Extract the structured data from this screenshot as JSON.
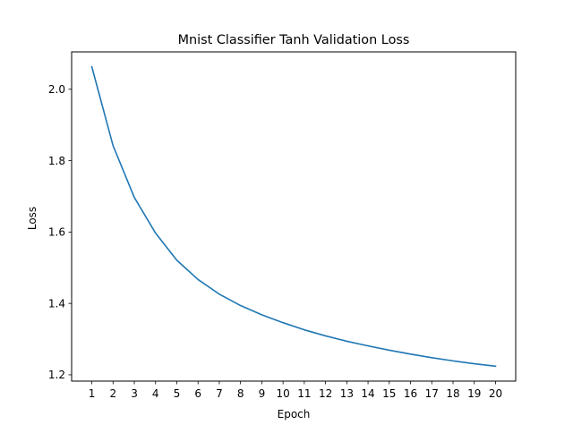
{
  "chart_data": {
    "type": "line",
    "title": "Mnist Classifier Tanh Validation Loss",
    "xlabel": "Epoch",
    "ylabel": "Loss",
    "x": [
      1,
      2,
      3,
      4,
      5,
      6,
      7,
      8,
      9,
      10,
      11,
      12,
      13,
      14,
      15,
      16,
      17,
      18,
      19,
      20
    ],
    "series": [
      {
        "values": [
          2.063,
          1.842,
          1.697,
          1.597,
          1.521,
          1.467,
          1.426,
          1.394,
          1.368,
          1.346,
          1.326,
          1.309,
          1.294,
          1.281,
          1.269,
          1.258,
          1.248,
          1.239,
          1.231,
          1.224
        ],
        "color": "#1f77b4"
      }
    ],
    "xticks": [
      "1",
      "2",
      "3",
      "4",
      "5",
      "6",
      "7",
      "8",
      "9",
      "10",
      "11",
      "12",
      "13",
      "14",
      "15",
      "16",
      "17",
      "18",
      "19",
      "20"
    ],
    "yticks": [
      "1.2",
      "1.4",
      "1.6",
      "1.8",
      "2.0"
    ],
    "xlim": [
      0.05,
      20.95
    ],
    "ylim": [
      1.1823,
      2.1047
    ],
    "grid": false,
    "legend": "none"
  }
}
